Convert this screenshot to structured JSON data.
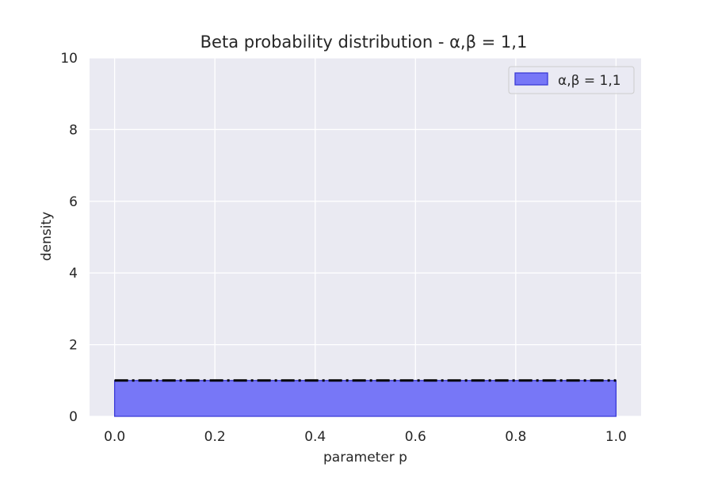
{
  "chart_data": {
    "type": "area",
    "title": "Beta probability distribution - α,β = 1,1",
    "xlabel": "parameter p",
    "ylabel": "density",
    "xlim": [
      -0.05,
      1.05
    ],
    "ylim": [
      0,
      10
    ],
    "xticks": [
      0.0,
      0.2,
      0.4,
      0.6,
      0.8,
      1.0
    ],
    "xtick_labels": [
      "0.0",
      "0.2",
      "0.4",
      "0.6",
      "0.8",
      "1.0"
    ],
    "yticks": [
      0,
      2,
      4,
      6,
      8,
      10
    ],
    "ytick_labels": [
      "0",
      "2",
      "4",
      "6",
      "8",
      "10"
    ],
    "grid": true,
    "legend_position": "top-right",
    "series": [
      {
        "name": "α,β = 1,1",
        "x": [
          0.0,
          0.1,
          0.2,
          0.3,
          0.4,
          0.5,
          0.6,
          0.7,
          0.8,
          0.9,
          1.0
        ],
        "values": [
          1.0,
          1.0,
          1.0,
          1.0,
          1.0,
          1.0,
          1.0,
          1.0,
          1.0,
          1.0,
          1.0
        ],
        "fill_color": "#7777f7",
        "edge_color": "#3b3bd6"
      }
    ],
    "reference_line": {
      "y": 1.0,
      "x_range": [
        0.0,
        1.0
      ],
      "style": "dash-dot",
      "color": "#000000"
    },
    "background_color": "#eaeaf2",
    "grid_color": "#ffffff"
  }
}
